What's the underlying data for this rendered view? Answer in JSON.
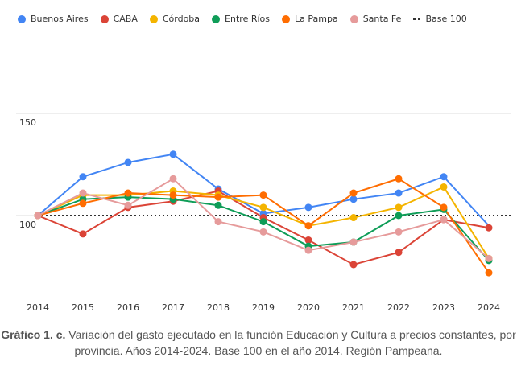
{
  "chart_data": {
    "type": "line",
    "title": "",
    "xlabel": "",
    "ylabel": "",
    "x": [
      "2014",
      "2015",
      "2016",
      "2017",
      "2018",
      "2019",
      "2020",
      "2021",
      "2022",
      "2023",
      "2024"
    ],
    "ylim": [
      55,
      150
    ],
    "yticks": [
      "150",
      "100"
    ],
    "ytick_values": [
      150,
      100
    ],
    "grid": true,
    "legend_position": "top-left",
    "series": [
      {
        "name": "Buenos Aires",
        "color": "#4285f4",
        "values": [
          100,
          119,
          126,
          130,
          113,
          101,
          104,
          108,
          111,
          119,
          95
        ]
      },
      {
        "name": "CABA",
        "color": "#db4437",
        "values": [
          100,
          91,
          104,
          107,
          112,
          99,
          88,
          76,
          82,
          98,
          94
        ]
      },
      {
        "name": "Córdoba",
        "color": "#f4b400",
        "values": [
          100,
          110,
          110,
          112,
          110,
          104,
          95,
          99,
          104,
          114,
          79
        ]
      },
      {
        "name": "Entre Ríos",
        "color": "#0f9d58",
        "values": [
          100,
          108,
          109,
          108,
          105,
          97,
          85,
          87,
          100,
          103,
          78
        ]
      },
      {
        "name": "La Pampa",
        "color": "#ff6d01",
        "values": [
          100,
          106,
          111,
          110,
          109,
          110,
          95,
          111,
          118,
          104,
          72
        ]
      },
      {
        "name": "Santa Fe",
        "color": "#e69b9b",
        "values": [
          100,
          111,
          105,
          118,
          97,
          92,
          83,
          87,
          92,
          98,
          79
        ]
      }
    ],
    "reference_line": {
      "name": "Base 100",
      "value": 100,
      "color": "#333333",
      "style": "dotted"
    }
  },
  "caption": {
    "bold": "Gráfico 1. c.",
    "text": " Variación del gasto ejecutado en la función Educación y Cultura a precios constantes, por provincia. Años 2014-2024. Base 100 en el año 2014. Región Pampeana."
  }
}
